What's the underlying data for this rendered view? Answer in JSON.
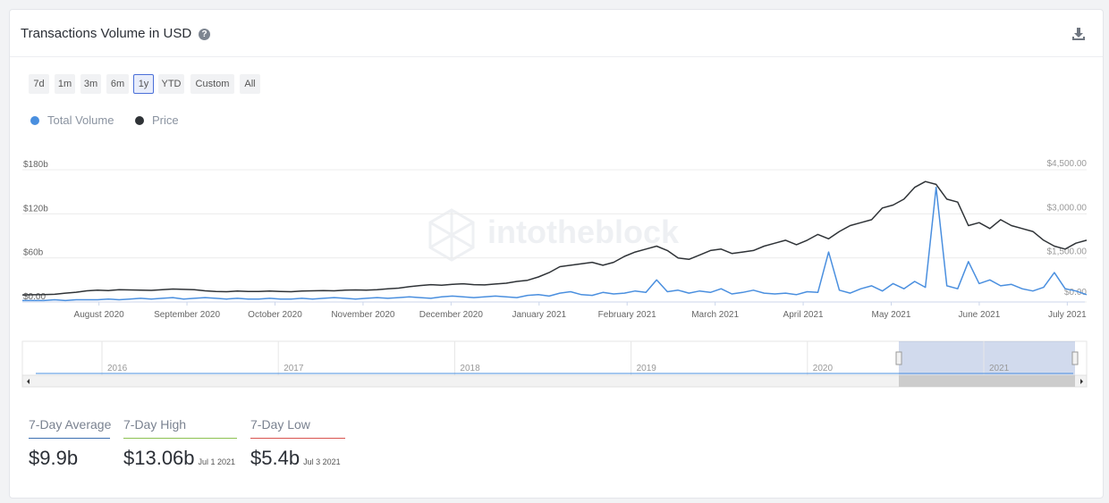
{
  "header": {
    "title": "Transactions Volume in USD"
  },
  "range_buttons": [
    "7d",
    "1m",
    "3m",
    "6m",
    "1y",
    "YTD",
    "Custom",
    "All"
  ],
  "active_range": 4,
  "watermark": "intotheblock",
  "chart_data": {
    "type": "line",
    "xlim": [
      0.13,
      12.22
    ],
    "xticks": [
      {
        "value": 1,
        "label": "August 2020"
      },
      {
        "value": 2,
        "label": "September 2020"
      },
      {
        "value": 3,
        "label": "October 2020"
      },
      {
        "value": 4,
        "label": "November 2020"
      },
      {
        "value": 5,
        "label": "December 2020"
      },
      {
        "value": 6,
        "label": "January 2021"
      },
      {
        "value": 7,
        "label": "February 2021"
      },
      {
        "value": 8,
        "label": "March 2021"
      },
      {
        "value": 9,
        "label": "April 2021"
      },
      {
        "value": 10,
        "label": "May 2021"
      },
      {
        "value": 11,
        "label": "June 2021"
      },
      {
        "value": 12,
        "label": "July 2021"
      }
    ],
    "ylim": [
      0,
      180
    ],
    "yticks": [
      {
        "value": 0,
        "label": "$0.00"
      },
      {
        "value": 60,
        "label": "$60b"
      },
      {
        "value": 120,
        "label": "$120b"
      },
      {
        "value": 180,
        "label": "$180b"
      }
    ],
    "y2lim": [
      0,
      4500
    ],
    "y2ticks": [
      {
        "value": 0,
        "label": "$0.00"
      },
      {
        "value": 1500,
        "label": "$1,500.00"
      },
      {
        "value": 3000,
        "label": "$3,000.00"
      },
      {
        "value": 4500,
        "label": "$4,500.00"
      }
    ],
    "grid": true,
    "series": [
      {
        "name": "Total Volume",
        "color": "#4a8fdf",
        "values": [
          2,
          2,
          2,
          3,
          2,
          3,
          3,
          3,
          4,
          3,
          4,
          5,
          4,
          5,
          6,
          4,
          5,
          6,
          5,
          4,
          5,
          4,
          4,
          5,
          4,
          4,
          5,
          4,
          5,
          6,
          5,
          4,
          5,
          6,
          5,
          6,
          7,
          6,
          5,
          7,
          8,
          7,
          6,
          7,
          8,
          7,
          6,
          9,
          10,
          8,
          12,
          14,
          10,
          9,
          13,
          11,
          12,
          15,
          13,
          30,
          14,
          16,
          12,
          15,
          13,
          18,
          11,
          13,
          16,
          12,
          11,
          12,
          10,
          14,
          13,
          68,
          16,
          12,
          18,
          22,
          15,
          25,
          18,
          28,
          20,
          156,
          22,
          18,
          55,
          25,
          30,
          22,
          24,
          18,
          15,
          20,
          40,
          18,
          15,
          10
        ]
      },
      {
        "name": "Price",
        "color": "#2f3337",
        "axis": "y2",
        "values": [
          240,
          245,
          250,
          260,
          300,
          330,
          380,
          400,
          390,
          420,
          410,
          400,
          395,
          420,
          440,
          430,
          420,
          380,
          360,
          350,
          370,
          360,
          355,
          370,
          360,
          350,
          370,
          380,
          390,
          380,
          400,
          410,
          400,
          420,
          450,
          470,
          520,
          560,
          590,
          570,
          600,
          620,
          590,
          580,
          610,
          640,
          700,
          740,
          850,
          1000,
          1200,
          1250,
          1300,
          1350,
          1250,
          1350,
          1550,
          1700,
          1800,
          1900,
          1750,
          1500,
          1450,
          1600,
          1750,
          1800,
          1650,
          1700,
          1750,
          1900,
          2000,
          2100,
          1950,
          2100,
          2300,
          2150,
          2400,
          2600,
          2700,
          2800,
          3200,
          3300,
          3500,
          3900,
          4100,
          4000,
          3500,
          3400,
          2600,
          2700,
          2500,
          2800,
          2600,
          2500,
          2400,
          2100,
          1900,
          1800,
          2000,
          2100
        ]
      }
    ]
  },
  "navigator": {
    "years": [
      "2016",
      "2017",
      "2018",
      "2019",
      "2020",
      "2021"
    ]
  },
  "stats": [
    {
      "label": "7-Day Average",
      "value": "$9.9b",
      "color": "#3c6fb0"
    },
    {
      "label": "7-Day High",
      "value": "$13.06b",
      "date": "Jul 1 2021",
      "color": "#8cc152"
    },
    {
      "label": "7-Day Low",
      "value": "$5.4b",
      "date": "Jul 3 2021",
      "color": "#d9534f"
    }
  ]
}
